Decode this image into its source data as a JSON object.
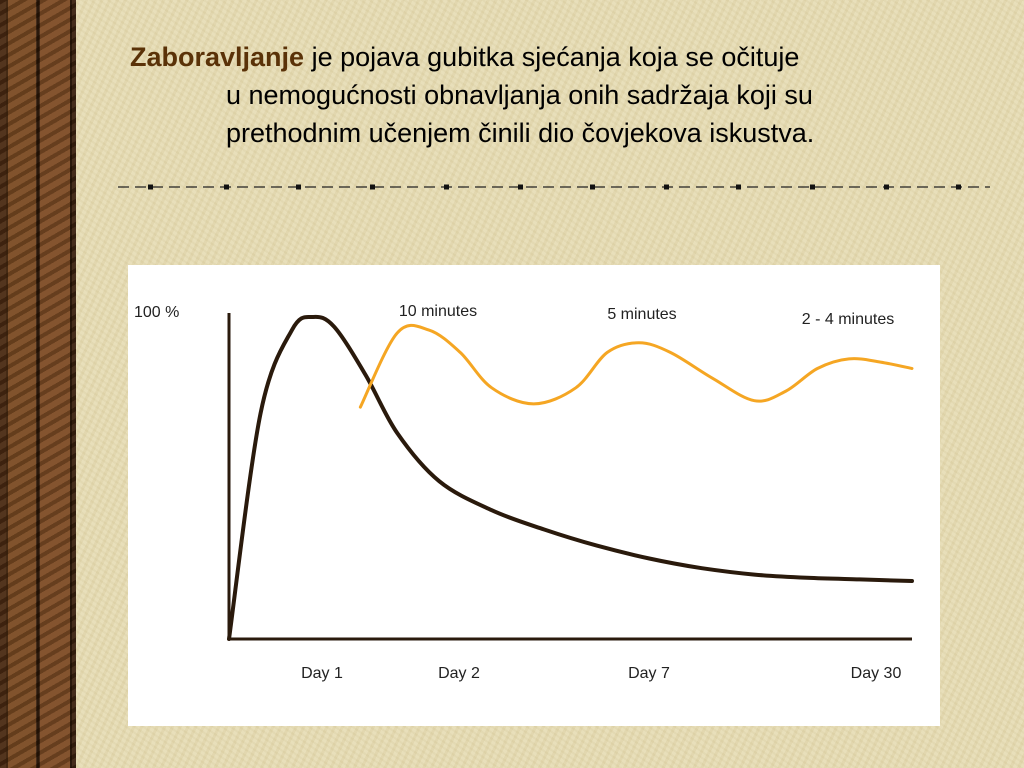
{
  "slide": {
    "term": "Zaboravljanje",
    "line1_rest": " je pojava gubitka sjećanja koja se očituje",
    "line2": "u nemogućnosti obnavljanja onih sadržaja koji su",
    "line3": "prethodnim učenjem činili dio čovjekova iskustva."
  },
  "colors": {
    "term": "#5a3208",
    "forgetting_curve": "#2a1a0c",
    "review_curve": "#f5a623"
  },
  "chart_data": {
    "type": "line",
    "title": "",
    "ylabel": "100 %",
    "x_ticks": [
      "Day 1",
      "Day 2",
      "Day 7",
      "Day 30"
    ],
    "annotations": [
      "10 minutes",
      "5 minutes",
      "2 - 4 minutes"
    ],
    "series": [
      {
        "values": [
          [
            0,
            0
          ],
          [
            0.3,
            70
          ],
          [
            0.6,
            96
          ],
          [
            0.8,
            100
          ],
          [
            1.0,
            97
          ],
          [
            1.3,
            82
          ],
          [
            1.6,
            64
          ],
          [
            2.0,
            49
          ],
          [
            2.5,
            40
          ],
          [
            3.0,
            34
          ],
          [
            3.5,
            29
          ],
          [
            4.0,
            25
          ],
          [
            4.5,
            22
          ],
          [
            5.0,
            20
          ],
          [
            5.5,
            19
          ],
          [
            6.0,
            18.5
          ],
          [
            6.5,
            18
          ]
        ]
      },
      {
        "values": [
          [
            1.25,
            72
          ],
          [
            1.6,
            95
          ],
          [
            1.9,
            96
          ],
          [
            2.2,
            89
          ],
          [
            2.5,
            78
          ],
          [
            2.9,
            73
          ],
          [
            3.3,
            78
          ],
          [
            3.6,
            89
          ],
          [
            3.9,
            92
          ],
          [
            4.2,
            89
          ],
          [
            4.6,
            81
          ],
          [
            5.0,
            74
          ],
          [
            5.3,
            77
          ],
          [
            5.6,
            84
          ],
          [
            5.9,
            87
          ],
          [
            6.2,
            86
          ],
          [
            6.5,
            84
          ]
        ]
      }
    ]
  }
}
